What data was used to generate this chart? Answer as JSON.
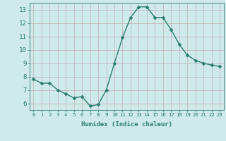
{
  "x": [
    0,
    1,
    2,
    3,
    4,
    5,
    6,
    7,
    8,
    9,
    10,
    11,
    12,
    13,
    14,
    15,
    16,
    17,
    18,
    19,
    20,
    21,
    22,
    23
  ],
  "y": [
    7.8,
    7.5,
    7.5,
    7.0,
    6.7,
    6.4,
    6.5,
    5.8,
    5.9,
    7.0,
    9.0,
    10.9,
    12.4,
    13.2,
    13.2,
    12.4,
    12.4,
    11.5,
    10.4,
    9.6,
    9.2,
    9.0,
    8.85,
    8.75
  ],
  "line_color": "#2d7d6e",
  "marker_color": "#2d7d6e",
  "bg_color": "#ceeaea",
  "grid_color": "#c0b0b0",
  "xlabel": "Humidex (Indice chaleur)",
  "ylim": [
    5.5,
    13.5
  ],
  "xlim": [
    -0.5,
    23.5
  ],
  "yticks": [
    6,
    7,
    8,
    9,
    10,
    11,
    12,
    13
  ],
  "xticks": [
    0,
    1,
    2,
    3,
    4,
    5,
    6,
    7,
    8,
    9,
    10,
    11,
    12,
    13,
    14,
    15,
    16,
    17,
    18,
    19,
    20,
    21,
    22,
    23
  ],
  "tick_color": "#2d7d6e",
  "axis_color": "#2d7d6e",
  "marker_size": 2.5,
  "line_width": 1.0,
  "xlabel_fontsize": 6.5,
  "ytick_fontsize": 6.5,
  "xtick_fontsize": 5.2
}
